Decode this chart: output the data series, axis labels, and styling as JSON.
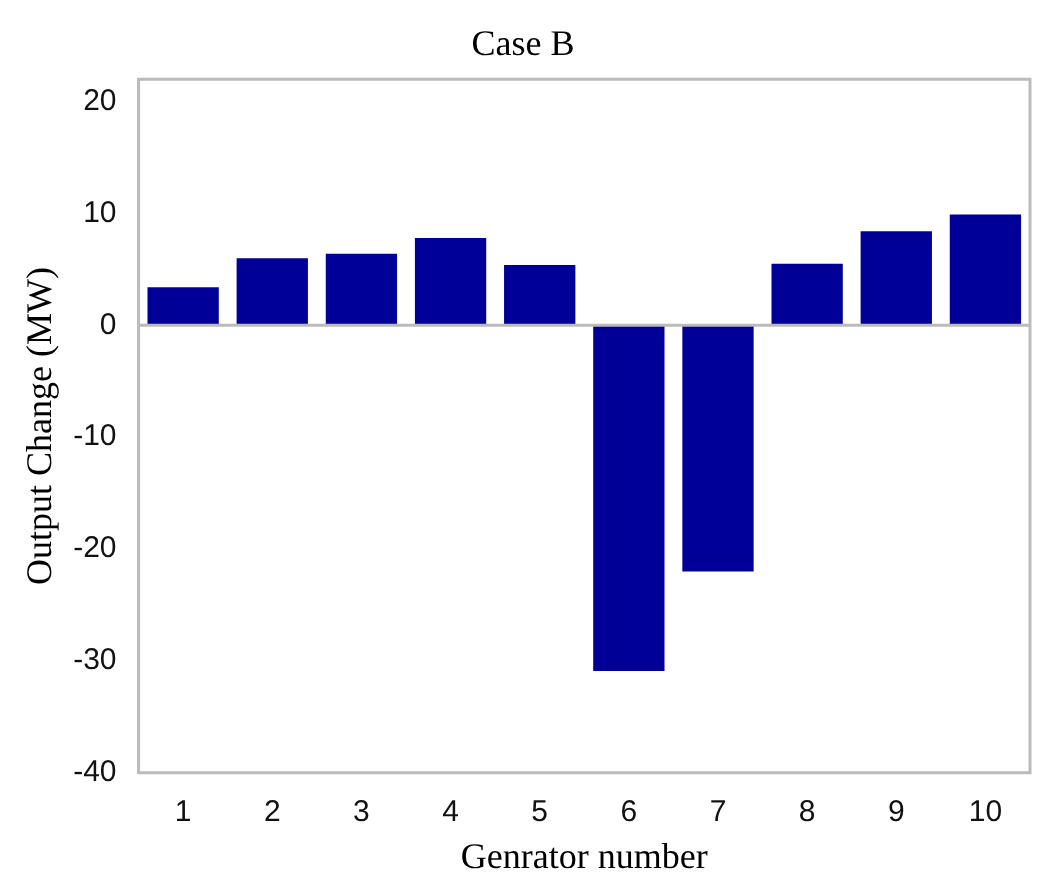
{
  "chart_data": {
    "type": "bar",
    "title": "Case B",
    "xlabel": "Genrator number",
    "ylabel": "Output Change (MW)",
    "categories": [
      "1",
      "2",
      "3",
      "4",
      "5",
      "6",
      "7",
      "8",
      "9",
      "10"
    ],
    "values": [
      3.4,
      6.0,
      6.4,
      7.8,
      5.4,
      -30.9,
      -22.0,
      5.5,
      8.4,
      9.9
    ],
    "color": "#000099",
    "ylim": [
      -40,
      22
    ],
    "yticks": [
      -40,
      -30,
      -20,
      -10,
      0,
      10,
      20
    ],
    "grid": false,
    "ref_lines": [
      {
        "axis": "y",
        "value": 0,
        "color": "#bbbbbb"
      }
    ]
  }
}
